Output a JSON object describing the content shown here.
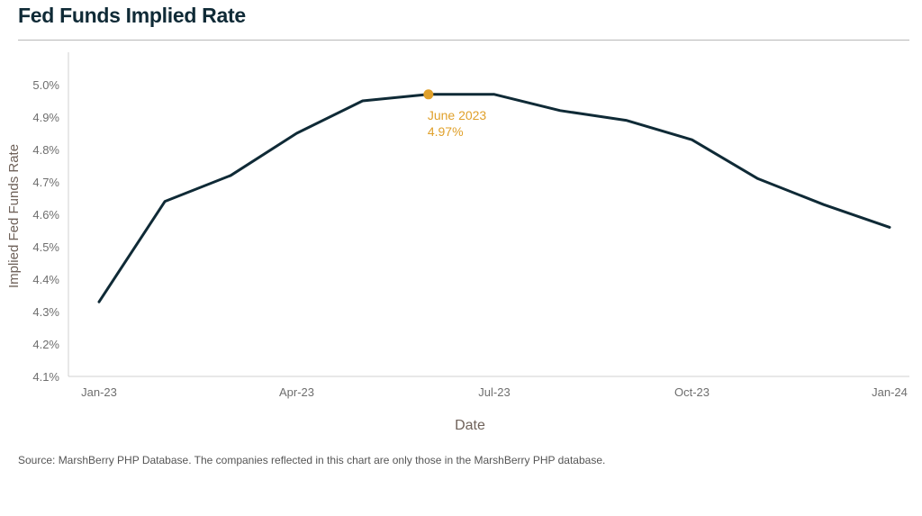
{
  "title": "Fed Funds Implied Rate",
  "source": "Source: MarshBerry PHP Database. The companies reflected in this chart are only those in the MarshBerry PHP database.",
  "colors": {
    "line": "#0f2a36",
    "highlight": "#e0a02a",
    "axis_text": "#6e6e6e",
    "axis_title": "#6f625a",
    "border": "#d0d0d0"
  },
  "chart_data": {
    "type": "line",
    "xlabel": "Date",
    "ylabel": "Implied Fed Funds Rate",
    "x": [
      "2023-01",
      "2023-02",
      "2023-03",
      "2023-04",
      "2023-05",
      "2023-06",
      "2023-07",
      "2023-08",
      "2023-09",
      "2023-10",
      "2023-11",
      "2023-12",
      "2024-01"
    ],
    "x_tick_labels": [
      "Jan-23",
      "Apr-23",
      "Jul-23",
      "Oct-23",
      "Jan-24"
    ],
    "x_tick_positions": [
      0,
      3,
      6,
      9,
      12
    ],
    "series": [
      {
        "values": [
          4.33,
          4.64,
          4.72,
          4.85,
          4.95,
          4.97,
          4.97,
          4.92,
          4.89,
          4.83,
          4.71,
          4.63,
          4.56
        ]
      }
    ],
    "y_tick_labels": [
      "4.1%",
      "4.2%",
      "4.3%",
      "4.4%",
      "4.5%",
      "4.6%",
      "4.7%",
      "4.8%",
      "4.9%",
      "5.0%"
    ],
    "ylim": [
      4.1,
      5.1
    ],
    "grid": false,
    "annotation": {
      "index": 5,
      "label_line1": "June 2023",
      "label_line2": "4.97%"
    }
  }
}
